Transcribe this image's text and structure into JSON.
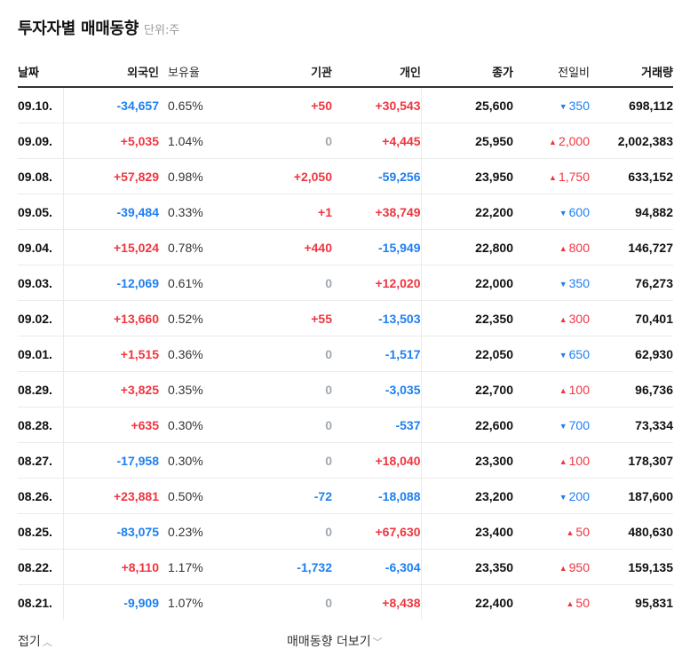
{
  "header": {
    "title": "투자자별 매매동향",
    "unit": "단위:주"
  },
  "columns": [
    "날짜",
    "외국인",
    "보유율",
    "기관",
    "개인",
    "종가",
    "전일비",
    "거래량"
  ],
  "colors": {
    "up": "#f0353f",
    "down": "#1e7ff0",
    "zero": "#a0a8b0"
  },
  "rows": [
    {
      "date": "09.10.",
      "foreign": "-34,657",
      "rate": "0.65%",
      "inst": "+50",
      "indiv": "+30,543",
      "close": "25,600",
      "diff": "350",
      "diff_dir": "down",
      "volume": "698,112"
    },
    {
      "date": "09.09.",
      "foreign": "+5,035",
      "rate": "1.04%",
      "inst": "0",
      "indiv": "+4,445",
      "close": "25,950",
      "diff": "2,000",
      "diff_dir": "up",
      "volume": "2,002,383"
    },
    {
      "date": "09.08.",
      "foreign": "+57,829",
      "rate": "0.98%",
      "inst": "+2,050",
      "indiv": "-59,256",
      "close": "23,950",
      "diff": "1,750",
      "diff_dir": "up",
      "volume": "633,152"
    },
    {
      "date": "09.05.",
      "foreign": "-39,484",
      "rate": "0.33%",
      "inst": "+1",
      "indiv": "+38,749",
      "close": "22,200",
      "diff": "600",
      "diff_dir": "down",
      "volume": "94,882"
    },
    {
      "date": "09.04.",
      "foreign": "+15,024",
      "rate": "0.78%",
      "inst": "+440",
      "indiv": "-15,949",
      "close": "22,800",
      "diff": "800",
      "diff_dir": "up",
      "volume": "146,727"
    },
    {
      "date": "09.03.",
      "foreign": "-12,069",
      "rate": "0.61%",
      "inst": "0",
      "indiv": "+12,020",
      "close": "22,000",
      "diff": "350",
      "diff_dir": "down",
      "volume": "76,273"
    },
    {
      "date": "09.02.",
      "foreign": "+13,660",
      "rate": "0.52%",
      "inst": "+55",
      "indiv": "-13,503",
      "close": "22,350",
      "diff": "300",
      "diff_dir": "up",
      "volume": "70,401"
    },
    {
      "date": "09.01.",
      "foreign": "+1,515",
      "rate": "0.36%",
      "inst": "0",
      "indiv": "-1,517",
      "close": "22,050",
      "diff": "650",
      "diff_dir": "down",
      "volume": "62,930"
    },
    {
      "date": "08.29.",
      "foreign": "+3,825",
      "rate": "0.35%",
      "inst": "0",
      "indiv": "-3,035",
      "close": "22,700",
      "diff": "100",
      "diff_dir": "up",
      "volume": "96,736"
    },
    {
      "date": "08.28.",
      "foreign": "+635",
      "rate": "0.30%",
      "inst": "0",
      "indiv": "-537",
      "close": "22,600",
      "diff": "700",
      "diff_dir": "down",
      "volume": "73,334"
    },
    {
      "date": "08.27.",
      "foreign": "-17,958",
      "rate": "0.30%",
      "inst": "0",
      "indiv": "+18,040",
      "close": "23,300",
      "diff": "100",
      "diff_dir": "up",
      "volume": "178,307"
    },
    {
      "date": "08.26.",
      "foreign": "+23,881",
      "rate": "0.50%",
      "inst": "-72",
      "indiv": "-18,088",
      "close": "23,200",
      "diff": "200",
      "diff_dir": "down",
      "volume": "187,600"
    },
    {
      "date": "08.25.",
      "foreign": "-83,075",
      "rate": "0.23%",
      "inst": "0",
      "indiv": "+67,630",
      "close": "23,400",
      "diff": "50",
      "diff_dir": "up",
      "volume": "480,630"
    },
    {
      "date": "08.22.",
      "foreign": "+8,110",
      "rate": "1.17%",
      "inst": "-1,732",
      "indiv": "-6,304",
      "close": "23,350",
      "diff": "950",
      "diff_dir": "up",
      "volume": "159,135"
    },
    {
      "date": "08.21.",
      "foreign": "-9,909",
      "rate": "1.07%",
      "inst": "0",
      "indiv": "+8,438",
      "close": "22,400",
      "diff": "50",
      "diff_dir": "up",
      "volume": "95,831"
    }
  ],
  "footer": {
    "fold_label": "접기",
    "more_label": "매매동향 더보기"
  },
  "icons": {
    "up_arrow": "▲",
    "down_arrow": "▼",
    "chevron_up": "︿",
    "chevron_down": "﹀"
  }
}
